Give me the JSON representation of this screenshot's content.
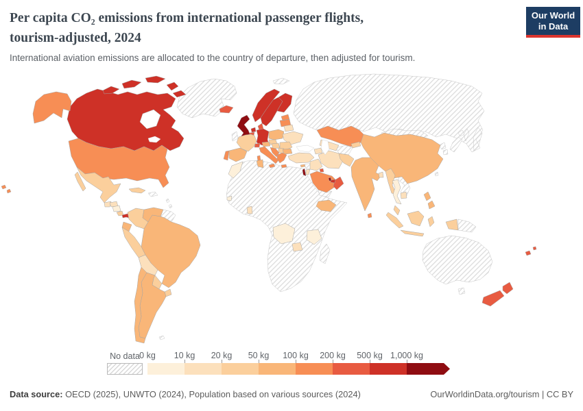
{
  "header": {
    "title_line1": "Per capita CO₂ emissions from international passenger flights,",
    "title_line2": "tourism-adjusted, 2024",
    "subtitle": "International aviation emissions are allocated to the country of departure, then adjusted for tourism.",
    "logo": {
      "line1": "Our World",
      "line2": "in Data",
      "bg_color": "#1d3d63",
      "accent_color": "#dc352f"
    }
  },
  "legend": {
    "no_data_label": "No data",
    "tick_labels": [
      "0 kg",
      "10 kg",
      "20 kg",
      "50 kg",
      "100 kg",
      "200 kg",
      "500 kg",
      "1,000 kg"
    ],
    "bin_colors": [
      "#fdf0da",
      "#fce0bc",
      "#fbcf9c",
      "#f9b678",
      "#f78e55",
      "#e85b41",
      "#ce3127",
      "#8f0d12"
    ]
  },
  "footer": {
    "source_label": "Data source:",
    "source_rest": " OECD (2025), UNWTO (2024), Population based on various sources (2024)",
    "link_text": "OurWorldinData.org/tourism | CC BY"
  },
  "map": {
    "regions": {
      "canada": 6,
      "greenland": -1,
      "iceland": 5,
      "united-states": 4,
      "mexico": 2,
      "guatemala": 1,
      "honduras": 1,
      "nicaragua": 0,
      "costa-rica": 2,
      "panama": 6,
      "cuba": 2,
      "hispaniola": -1,
      "antilles": -1,
      "colombia": 2,
      "venezuela": 3,
      "guyanas": -1,
      "ecuador": 3,
      "peru": 2,
      "brazil": 3,
      "bolivia": 1,
      "paraguay": 2,
      "uruguay": 2,
      "argentina": 3,
      "chile": 3,
      "falklands": -1,
      "svalbard": -1,
      "ireland": -1,
      "uk": 7,
      "norway": 6,
      "sweden": 6,
      "finland": 6,
      "denmark": 5,
      "baltics": 4,
      "netherlands": 6,
      "belgium": 5,
      "germany": 6,
      "poland": 3,
      "czechia": 2,
      "belarus": 1,
      "ukraine": 1,
      "france": 2,
      "switzerland": 5,
      "austria": 3,
      "hungary": 2,
      "romania": 2,
      "spain": 3,
      "portugal": 4,
      "italy": 4,
      "croatia": 4,
      "serbia": 2,
      "bulgaria": 3,
      "greece": 4,
      "morocco": 0,
      "tunisia": 3,
      "senegal": 0,
      "ghana": 1,
      "ethiopia": 3,
      "drc": 0,
      "tanzania": 0,
      "zambia": 1,
      "africa": -1,
      "madagascar": -1,
      "turkey": 1,
      "cyprus": 3,
      "syria": -1,
      "israel": 7,
      "jordan": 1,
      "iraq": 1,
      "iran": 1,
      "saudi-arabia": 4,
      "kuwait": 5,
      "yemen": -1,
      "oman": 5,
      "uae": 6,
      "qatar": 7,
      "azerbaijan": 1,
      "russia": -1,
      "kazakhstan": 4,
      "uzbekistan": 1,
      "kyrgyzstan": 2,
      "afghanistan": -1,
      "pakistan": 2,
      "india": 3,
      "nepal": -1,
      "bangladesh": 1,
      "sri-lanka": 4,
      "china": 3,
      "mongolia": -1,
      "taiwan": -1,
      "north-korea": -1,
      "south-korea": -1,
      "japan": -1,
      "myanmar": 2,
      "thailand": 0,
      "vietnam": -1,
      "cambodia": 1,
      "malaysia": 2,
      "indonesia": 2,
      "papua-new-guinea": -1,
      "philippines": 3,
      "australia": -1,
      "new-zealand": 5,
      "fiji": 5
    }
  },
  "chart_data": {
    "type": "choropleth",
    "title": "Per capita CO₂ emissions from international passenger flights, tourism-adjusted, 2024",
    "subtitle": "International aviation emissions are allocated to the country of departure, then adjusted for tourism.",
    "unit": "kg CO₂ per person",
    "legend_position": "bottom",
    "no_data": {
      "label": "No data",
      "pattern": "diagonal-hatch",
      "countries": [
        "Russia",
        "Australia",
        "Japan",
        "South Korea",
        "North Korea",
        "Mongolia",
        "Vietnam",
        "Afghanistan",
        "Nepal",
        "Taiwan",
        "Papua New Guinea",
        "Greenland",
        "Ireland",
        "Syria",
        "Yemen",
        "Egypt",
        "Libya",
        "Algeria",
        "Nigeria",
        "South Africa",
        "Madagascar",
        "Guyana",
        "Suriname",
        "Haiti",
        "Dominican Republic"
      ]
    },
    "bins": [
      {
        "range": "0-10 kg",
        "color": "#fdf0da",
        "countries": [
          "Nicaragua",
          "Thailand",
          "Morocco",
          "Senegal",
          "DR Congo",
          "Tanzania"
        ]
      },
      {
        "range": "10-20 kg",
        "color": "#fce0bc",
        "countries": [
          "Guatemala",
          "Honduras",
          "Bolivia",
          "Belarus",
          "Ukraine",
          "Turkey",
          "Jordan",
          "Iraq",
          "Iran",
          "Uzbekistan",
          "Azerbaijan",
          "Bangladesh",
          "Cambodia",
          "Ghana",
          "Zambia"
        ]
      },
      {
        "range": "20-50 kg",
        "color": "#fbcf9c",
        "countries": [
          "Mexico",
          "Costa Rica",
          "Cuba",
          "Colombia",
          "Peru",
          "Paraguay",
          "Uruguay",
          "France",
          "Czechia",
          "Hungary",
          "Romania",
          "Serbia",
          "Pakistan",
          "Kyrgyzstan",
          "Myanmar",
          "Malaysia",
          "Indonesia"
        ]
      },
      {
        "range": "50-100 kg",
        "color": "#f9b678",
        "countries": [
          "Ecuador",
          "Venezuela",
          "Brazil",
          "Argentina",
          "Chile",
          "Poland",
          "Austria",
          "Spain",
          "Bulgaria",
          "Tunisia",
          "Ethiopia",
          "India",
          "China",
          "Cyprus",
          "Philippines"
        ]
      },
      {
        "range": "100-200 kg",
        "color": "#f78e55",
        "countries": [
          "United States",
          "Portugal",
          "Italy",
          "Greece",
          "Croatia",
          "Estonia",
          "Latvia",
          "Lithuania",
          "Saudi Arabia",
          "Kazakhstan",
          "Sri Lanka"
        ]
      },
      {
        "range": "200-500 kg",
        "color": "#e85b41",
        "countries": [
          "Iceland",
          "Denmark",
          "Belgium",
          "Switzerland",
          "Kuwait",
          "Oman",
          "New Zealand",
          "Fiji"
        ]
      },
      {
        "range": "500-1,000 kg",
        "color": "#ce3127",
        "countries": [
          "Canada",
          "Panama",
          "Norway",
          "Sweden",
          "Finland",
          "Germany",
          "Netherlands",
          "United Arab Emirates"
        ]
      },
      {
        "range": "1,000+ kg",
        "color": "#8f0d12",
        "countries": [
          "United Kingdom",
          "Israel",
          "Qatar"
        ]
      }
    ]
  }
}
